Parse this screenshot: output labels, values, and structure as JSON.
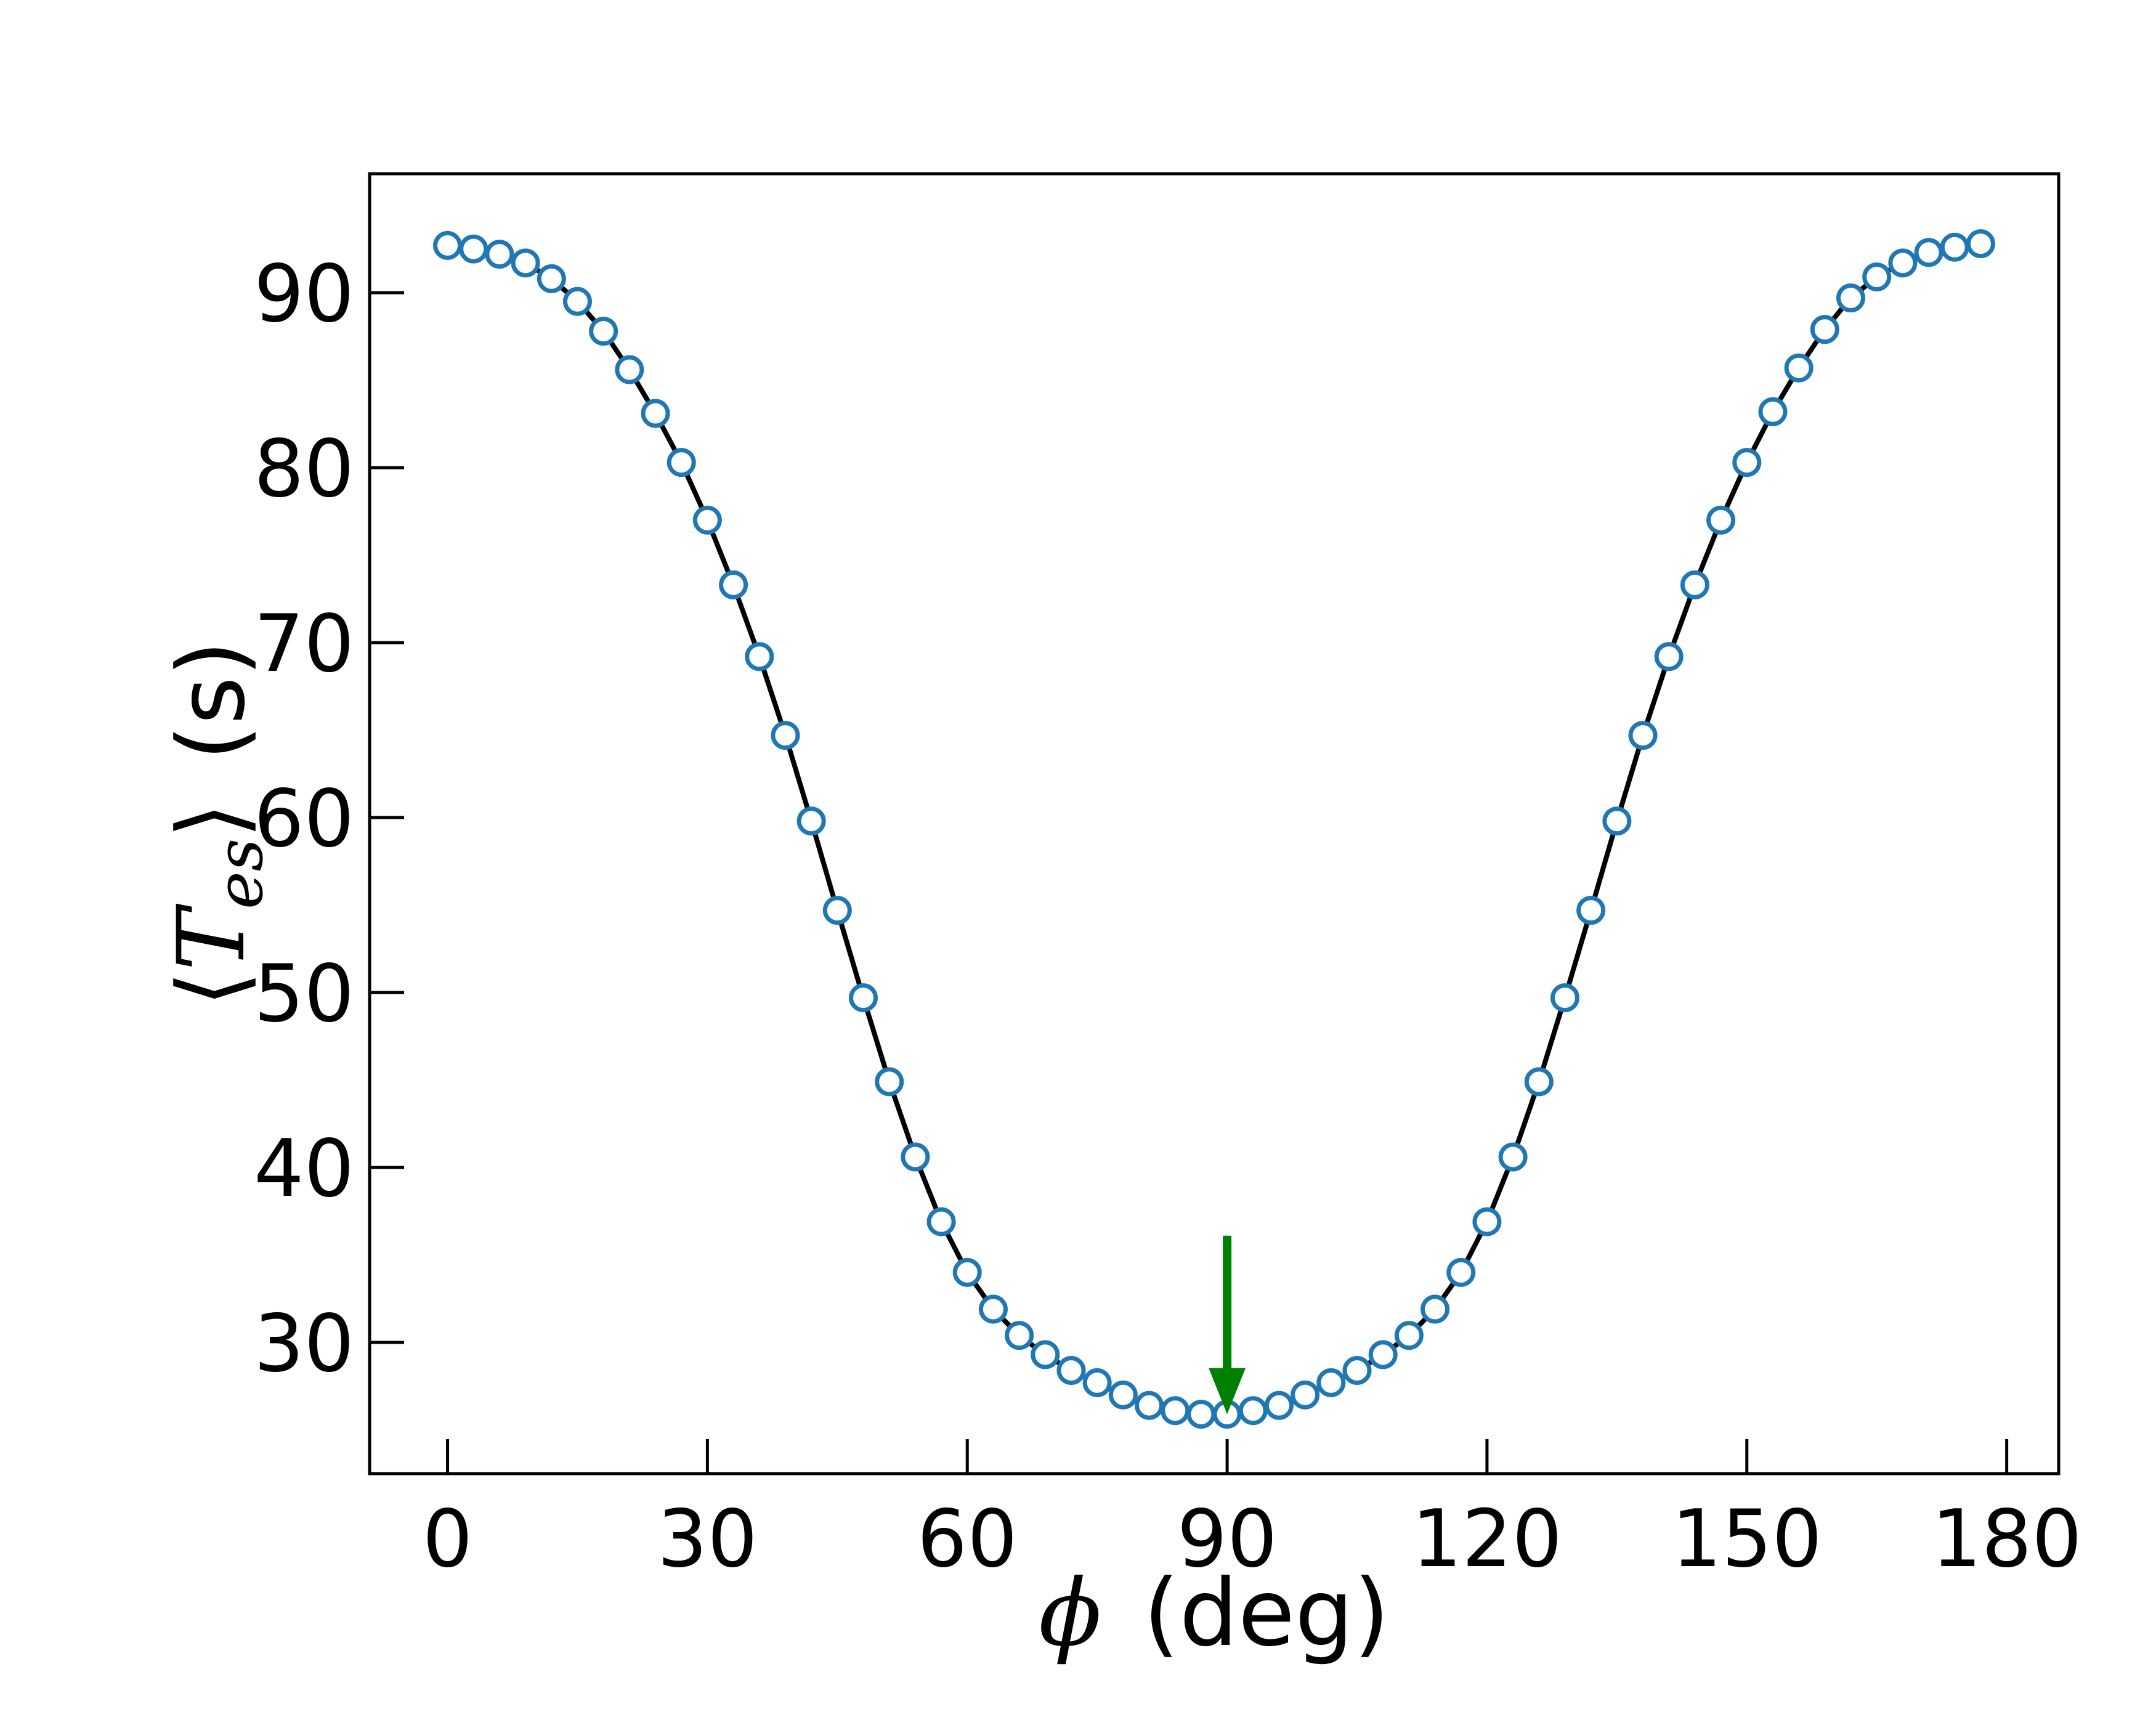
{
  "chart_data": {
    "type": "line",
    "title": "",
    "xlabel": "ϕ (deg)",
    "xlabel_symbol": "ϕ",
    "xlabel_unit": "(deg)",
    "ylabel_symbol": "T",
    "ylabel_subscript": "es",
    "ylabel_unit": "(s)",
    "xlim": [
      -9,
      186
    ],
    "ylim": [
      22.5,
      96.8
    ],
    "xticks": [
      0,
      30,
      60,
      90,
      120,
      150,
      180
    ],
    "yticks": [
      30,
      40,
      50,
      60,
      70,
      80,
      90
    ],
    "grid": false,
    "legend": "none",
    "line_color": "#000000",
    "marker_edge_color": "#1f77b4",
    "marker_face_color": "#ffffff",
    "annotation": {
      "type": "arrow",
      "x": 90,
      "y_start": 36.1,
      "y_end": 25.9,
      "color": "#008000"
    },
    "series": [
      {
        "x": [
          0,
          3,
          6,
          9,
          12,
          15,
          18,
          21,
          24,
          27,
          30,
          33,
          36,
          39,
          42,
          45,
          48,
          51,
          54,
          57,
          60,
          63,
          66,
          69,
          72,
          75,
          78,
          81,
          84,
          87,
          90,
          93,
          96,
          99,
          102,
          105,
          108,
          111,
          114,
          117,
          120,
          123,
          126,
          129,
          132,
          135,
          138,
          141,
          144,
          147,
          150,
          153,
          156,
          159,
          162,
          165,
          168,
          171,
          174,
          177
        ],
        "y": [
          92.7,
          92.5,
          92.2,
          91.7,
          90.8,
          89.5,
          87.8,
          85.6,
          83.1,
          80.3,
          77.0,
          73.3,
          69.2,
          64.7,
          59.8,
          54.7,
          49.7,
          44.9,
          40.6,
          36.9,
          34.0,
          31.9,
          30.4,
          29.3,
          28.4,
          27.7,
          27.0,
          26.4,
          26.1,
          25.9,
          25.9,
          26.1,
          26.4,
          27.0,
          27.7,
          28.4,
          29.3,
          30.4,
          31.9,
          34.0,
          36.9,
          40.6,
          44.9,
          49.7,
          54.7,
          59.8,
          64.7,
          69.2,
          73.3,
          77.0,
          80.3,
          83.2,
          85.7,
          87.9,
          89.7,
          90.9,
          91.7,
          92.3,
          92.6,
          92.8
        ]
      }
    ]
  }
}
